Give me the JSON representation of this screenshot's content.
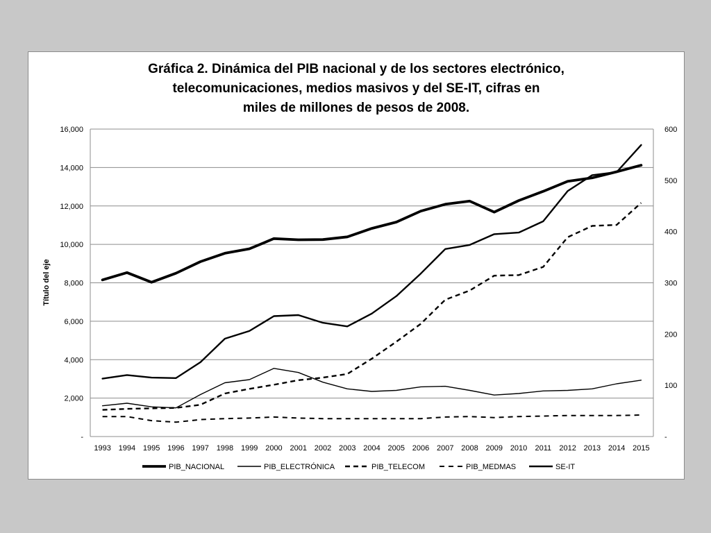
{
  "chart_data": {
    "type": "line",
    "title_lines": [
      "Gráfica 2. Dinámica del PIB nacional y de los sectores electrónico,",
      "telecomunicaciones, medios masivos y del SE-IT, cifras en",
      "miles de millones de pesos de 2008."
    ],
    "ylabel": "Título del eje",
    "x": [
      "1993",
      "1994",
      "1995",
      "1996",
      "1997",
      "1998",
      "1999",
      "2000",
      "2001",
      "2002",
      "2003",
      "2004",
      "2005",
      "2006",
      "2007",
      "2008",
      "2009",
      "2010",
      "2011",
      "2012",
      "2013",
      "2014",
      "2015"
    ],
    "ylim": [
      0,
      16000
    ],
    "y_ticks": [
      "-",
      "2,000",
      "4,000",
      "6,000",
      "8,000",
      "10,000",
      "12,000",
      "14,000",
      "16,000"
    ],
    "y2lim": [
      0,
      600
    ],
    "y2_ticks": [
      "-",
      "100",
      "200",
      "300",
      "400",
      "500",
      "600"
    ],
    "grid": true,
    "legend_position": "bottom",
    "series": [
      {
        "name": "PIB_NACIONAL",
        "axis": "left",
        "style": "thick",
        "color": "#000000",
        "values": [
          8150,
          8530,
          8030,
          8500,
          9100,
          9540,
          9770,
          10300,
          10240,
          10250,
          10390,
          10830,
          11160,
          11730,
          12090,
          12250,
          11680,
          12280,
          12760,
          13280,
          13460,
          13780,
          14120
        ]
      },
      {
        "name": "PIB_ELECTRÓNICA",
        "axis": "right",
        "style": "thin",
        "color": "#000000",
        "values": [
          60,
          65,
          58,
          56,
          82,
          105,
          111,
          133,
          125,
          106,
          93,
          88,
          90,
          97,
          98,
          90,
          81,
          84,
          89,
          90,
          93,
          103,
          110
        ]
      },
      {
        "name": "PIB_TELECOM",
        "axis": "right",
        "style": "dash-bold",
        "color": "#000000",
        "values": [
          52,
          54,
          55,
          56,
          62,
          84,
          93,
          101,
          110,
          115,
          122,
          152,
          185,
          220,
          267,
          285,
          314,
          315,
          331,
          389,
          411,
          413,
          456
        ]
      },
      {
        "name": "PIB_MEDMAS",
        "axis": "right",
        "style": "dash",
        "color": "#000000",
        "values": [
          39,
          39,
          31,
          28,
          33,
          35,
          36,
          38,
          36,
          35,
          35,
          35,
          35,
          35,
          38,
          39,
          37,
          39,
          40,
          41,
          41,
          41,
          42
        ]
      },
      {
        "name": "SE-IT",
        "axis": "right",
        "style": "medium",
        "color": "#000000",
        "values": [
          113,
          120,
          115,
          114,
          145,
          191,
          206,
          235,
          237,
          222,
          215,
          240,
          274,
          318,
          366,
          374,
          395,
          398,
          420,
          479,
          510,
          516,
          569
        ]
      }
    ]
  }
}
